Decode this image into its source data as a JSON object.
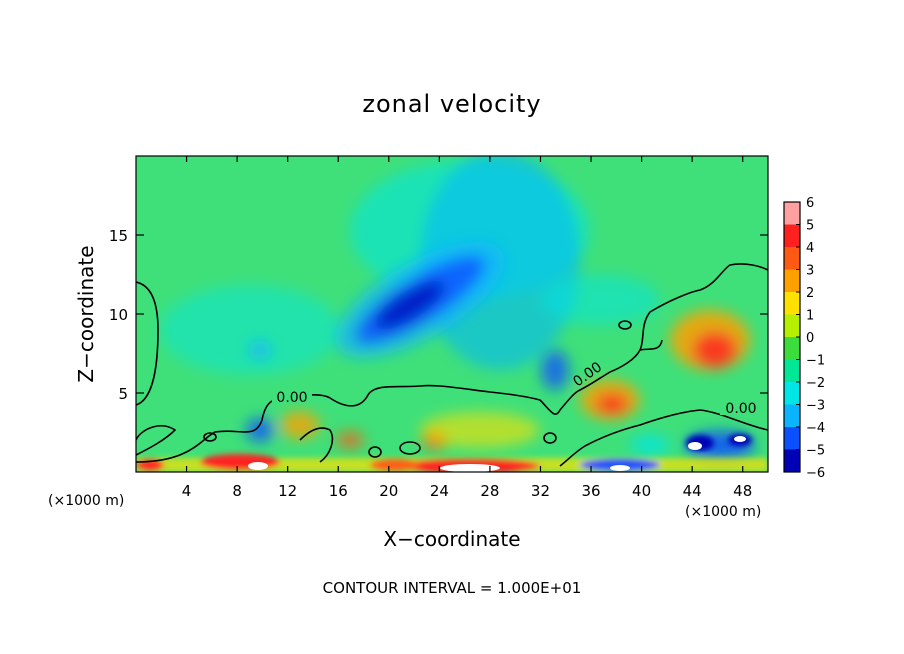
{
  "chart_data": {
    "type": "heatmap",
    "title": "zonal velocity",
    "xlabel": "X−coordinate",
    "ylabel": "Z−coordinate",
    "x_unit_left": "(×1000 m)",
    "x_unit_right": "(×1000 m)",
    "xlim": [
      0,
      50
    ],
    "ylim": [
      0,
      20
    ],
    "x_ticks": [
      4,
      8,
      12,
      16,
      20,
      24,
      28,
      32,
      36,
      40,
      44,
      48
    ],
    "x_tick_labels": [
      "4",
      "8",
      "12",
      "16",
      "20",
      "24",
      "28",
      "32",
      "36",
      "40",
      "44",
      "48"
    ],
    "y_ticks": [
      5,
      10,
      15
    ],
    "y_tick_labels": [
      "5",
      "10",
      "15"
    ],
    "colorbar": {
      "levels": [
        6,
        5,
        4,
        3,
        2,
        1,
        0,
        -1,
        -2,
        -3,
        -4,
        -5,
        -6
      ],
      "labels": [
        "6",
        "5",
        "4",
        "3",
        "2",
        "1",
        "0",
        "−1",
        "−2",
        "−3",
        "−4",
        "−5",
        "−6"
      ],
      "colors": [
        "#ffa0a0",
        "#ff2020",
        "#ff5a14",
        "#ffa000",
        "#ffe000",
        "#b4f000",
        "#3cdc3c",
        "#00e896",
        "#00e6e6",
        "#0ab4ff",
        "#0a50ff",
        "#0000b4",
        "#780096"
      ]
    },
    "contour_labels": [
      "0.00",
      "0.00",
      "0.00"
    ],
    "footer": "CONTOUR INTERVAL = 1.000E+01",
    "field_features": [
      {
        "kind": "jet",
        "x": [
          18,
          32
        ],
        "z": [
          8,
          17
        ],
        "value": -5
      },
      {
        "kind": "max",
        "x": 46,
        "z": 8,
        "value": 4
      },
      {
        "kind": "max",
        "x": 38,
        "z": 3.5,
        "value": 4
      },
      {
        "kind": "max",
        "x": 8,
        "z": 0.5,
        "value": 6
      }
    ]
  }
}
